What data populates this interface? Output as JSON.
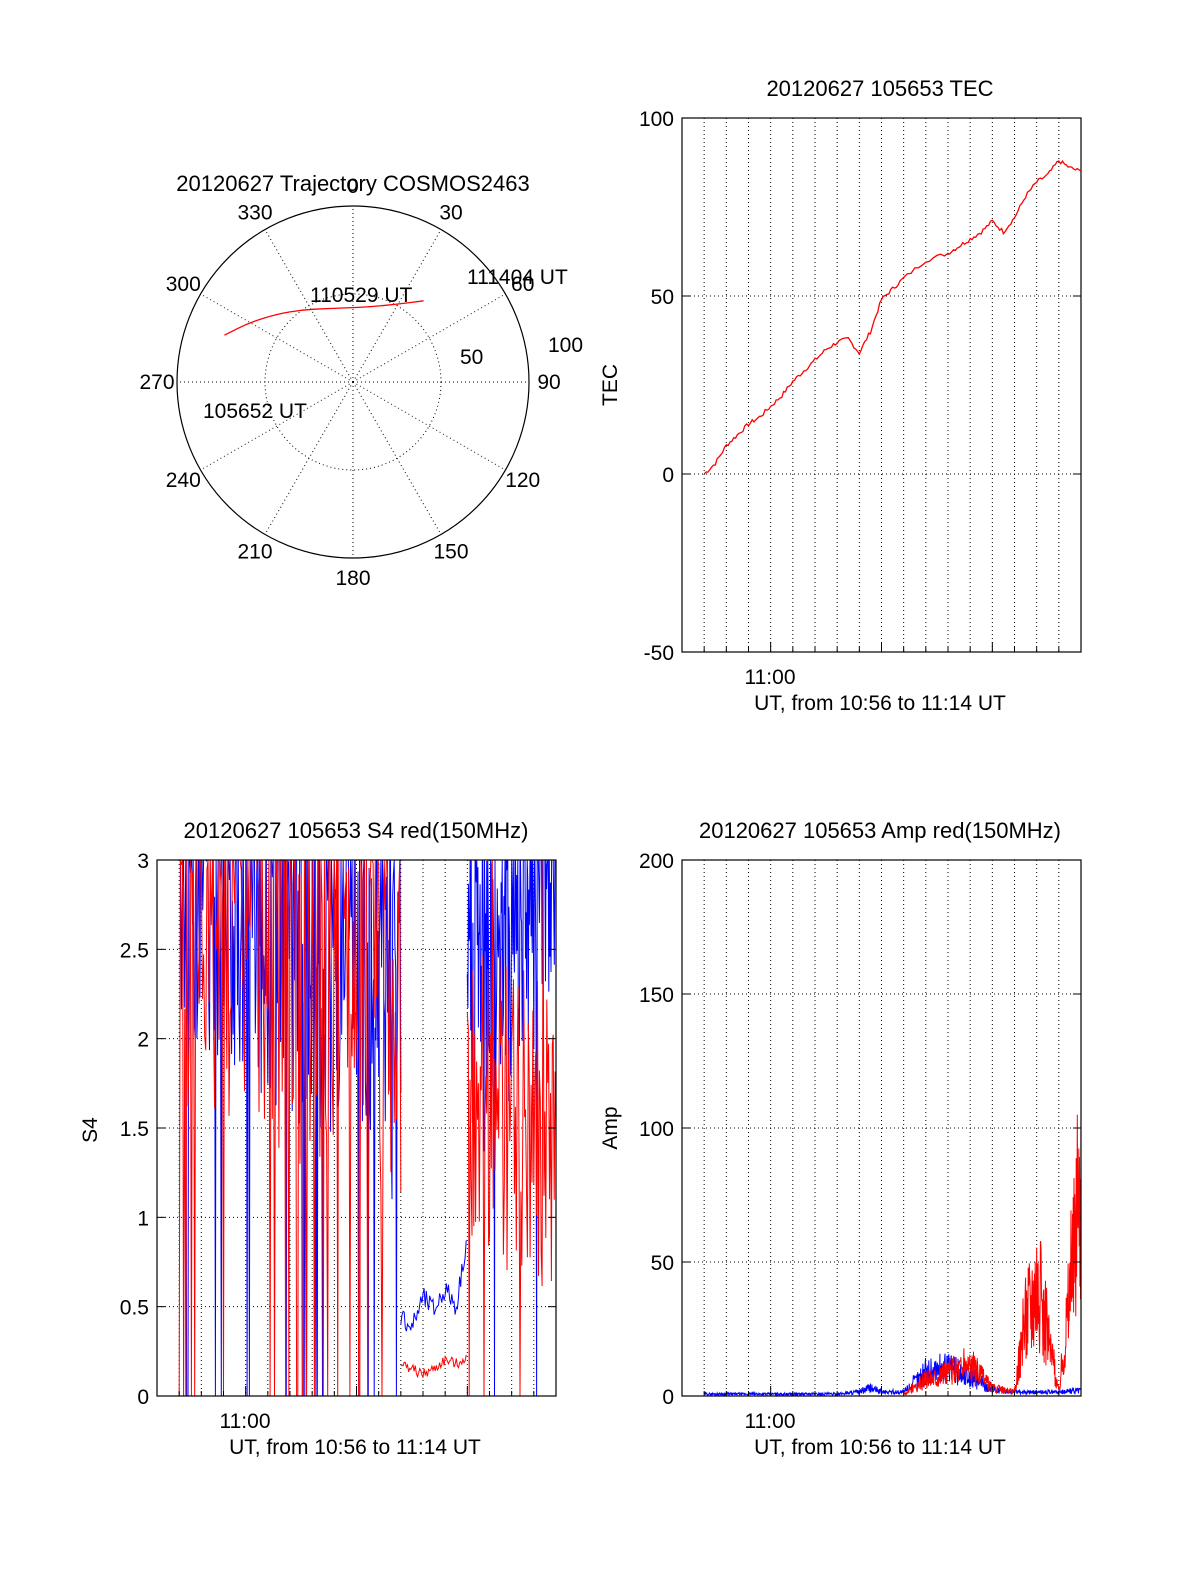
{
  "chart_data": [
    {
      "type": "polar",
      "title": "20120627 Trajectory COSMOS2463",
      "azimuth_labels": [
        "0",
        "30",
        "60",
        "90",
        "120",
        "150",
        "180",
        "210",
        "240",
        "270",
        "300",
        "330"
      ],
      "radial_labels": [
        "50",
        "100"
      ],
      "elevation_range": [
        0,
        90
      ],
      "grid": true,
      "series": [
        {
          "color": "#ff0000",
          "points": [
            {
              "az": 290,
              "el": 20
            },
            {
              "az": 300,
              "el": 29
            },
            {
              "az": 312,
              "el": 38
            },
            {
              "az": 325,
              "el": 45
            },
            {
              "az": 340,
              "el": 50
            },
            {
              "az": 0,
              "el": 52
            },
            {
              "az": 15,
              "el": 50
            },
            {
              "az": 30,
              "el": 44
            },
            {
              "az": 41,
              "el": 35
            }
          ]
        }
      ],
      "annotations": [
        "105652 UT",
        "110529 UT",
        "111404 UT"
      ]
    },
    {
      "type": "line",
      "title": "20120627 105653 TEC",
      "xlabel": "UT, from 10:56 to 11:14 UT",
      "ylabel": "TEC",
      "xlim": [
        "10:56",
        "11:14"
      ],
      "ylim": [
        -50,
        100
      ],
      "yticks": [
        "-50",
        "0",
        "50",
        "100"
      ],
      "xticks": [
        "11:00"
      ],
      "grid": true,
      "series": [
        {
          "color": "#ff0000",
          "x": [
            "10:57:00",
            "10:57:30",
            "10:58:00",
            "10:58:30",
            "10:59:00",
            "10:59:30",
            "11:00:00",
            "11:00:30",
            "11:01:00",
            "11:01:30",
            "11:02:00",
            "11:02:30",
            "11:03:00",
            "11:03:30",
            "11:04:00",
            "11:04:30",
            "11:05:00",
            "11:05:30",
            "11:06:00",
            "11:07:00",
            "11:08:00",
            "11:08:30",
            "11:09:00",
            "11:09:30",
            "11:10:00",
            "11:10:30",
            "11:11:00",
            "11:11:30",
            "11:12:00",
            "11:12:30",
            "11:13:00",
            "11:13:30",
            "11:14:00"
          ],
          "y": [
            0,
            3,
            8,
            11,
            14,
            16,
            19,
            22,
            26,
            29,
            32,
            35,
            37,
            38,
            34,
            40,
            49,
            52,
            55,
            60,
            62,
            64,
            66,
            68,
            71,
            68,
            72,
            78,
            82,
            84,
            88,
            86,
            85
          ]
        }
      ]
    },
    {
      "type": "line",
      "title": "20120627 105653 S4 red(150MHz)",
      "xlabel": "UT, from 10:56 to 11:14 UT",
      "ylabel": "S4",
      "xlim": [
        "10:56",
        "11:14"
      ],
      "ylim": [
        0,
        3
      ],
      "yticks": [
        "0",
        "0.5",
        "1",
        "1.5",
        "2",
        "2.5",
        "3"
      ],
      "xticks": [
        "11:00"
      ],
      "grid": true,
      "series": [
        {
          "color": "#0000ff",
          "segments": [
            {
              "x": [
                "10:57:00",
                "11:07:00"
              ],
              "y": [
                2.5,
                1.5
              ],
              "note": "dense, saturated"
            },
            {
              "x": [
                "11:07:00",
                "11:07:30",
                "11:08:00",
                "11:08:30",
                "11:09:00",
                "11:09:30",
                "11:10:00"
              ],
              "y": [
                0.45,
                0.38,
                0.55,
                0.48,
                0.6,
                0.5,
                0.9
              ]
            },
            {
              "x": [
                "11:10:00",
                "11:14:00"
              ],
              "y": [
                1.6,
                2.5
              ],
              "note": "dense, saturated"
            }
          ]
        },
        {
          "color": "#ff0000",
          "segments": [
            {
              "x": [
                "10:57:00",
                "11:07:00"
              ],
              "y": [
                2.0,
                1.6
              ],
              "note": "dense spikes"
            },
            {
              "x": [
                "11:07:00",
                "11:07:30",
                "11:08:00",
                "11:08:30",
                "11:09:00",
                "11:09:30",
                "11:10:00"
              ],
              "y": [
                0.18,
                0.15,
                0.12,
                0.15,
                0.2,
                0.18,
                0.22
              ]
            },
            {
              "x": [
                "11:10:00",
                "11:14:00"
              ],
              "y": [
                1.2,
                0.8
              ],
              "note": "dense spikes"
            }
          ]
        }
      ]
    },
    {
      "type": "line",
      "title": "20120627 105653 Amp red(150MHz)",
      "xlabel": "UT, from 10:56 to 11:14 UT",
      "ylabel": "Amp",
      "xlim": [
        "10:56",
        "11:14"
      ],
      "ylim": [
        0,
        200
      ],
      "yticks": [
        "0",
        "50",
        "100",
        "150",
        "200"
      ],
      "xticks": [
        "11:00"
      ],
      "grid": true,
      "series": [
        {
          "color": "#0000ff",
          "x": [
            "10:57:00",
            "11:03:00",
            "11:04:00",
            "11:04:30",
            "11:05:00",
            "11:06:00",
            "11:07:00",
            "11:08:00",
            "11:09:00",
            "11:10:00",
            "11:11:00",
            "11:12:00",
            "11:13:00",
            "11:14:00"
          ],
          "y": [
            1,
            1,
            2,
            4,
            2,
            2,
            12,
            14,
            10,
            3,
            2,
            2,
            2,
            3
          ]
        },
        {
          "color": "#ff0000",
          "x": [
            "11:06:00",
            "11:07:00",
            "11:08:00",
            "11:09:00",
            "11:10:00",
            "11:11:00",
            "11:11:30",
            "11:12:00",
            "11:13:00",
            "11:14:00"
          ],
          "y": [
            1,
            8,
            12,
            16,
            4,
            2,
            40,
            60,
            2,
            105
          ]
        }
      ]
    }
  ]
}
